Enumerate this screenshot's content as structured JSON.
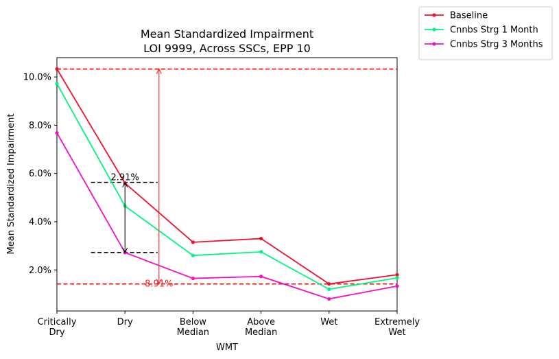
{
  "chart_data": {
    "type": "line",
    "title": "Mean Standardized Impairment",
    "subtitle": "LOI 9999, Across SSCs, EPP 10",
    "xlabel": "WMT",
    "ylabel": "Mean Standardized Impairment",
    "categories": [
      [
        "Critically",
        "Dry"
      ],
      [
        "Dry"
      ],
      [
        "Below",
        "Median"
      ],
      [
        "Above",
        "Median"
      ],
      [
        "Wet"
      ],
      [
        "Extremely",
        "Wet"
      ]
    ],
    "ylim": [
      0.3,
      10.8
    ],
    "yticks": [
      2.0,
      4.0,
      6.0,
      8.0,
      10.0
    ],
    "ytick_labels": [
      "2.0%",
      "4.0%",
      "6.0%",
      "8.0%",
      "10.0%"
    ],
    "y_unit": "%",
    "grid": false,
    "legend_position": "outside-top-right",
    "series": [
      {
        "name": "Baseline",
        "color": "#f0102e",
        "values": [
          10.33,
          5.6,
          3.15,
          3.3,
          1.42,
          1.8
        ]
      },
      {
        "name": "Cnnbs Strg 1 Month",
        "color": "#00f57f",
        "values": [
          9.72,
          4.65,
          2.6,
          2.75,
          1.2,
          1.67
        ]
      },
      {
        "name": "Cnnbs Strg 3 Months",
        "color": "#f20ccc",
        "values": [
          7.68,
          2.72,
          1.65,
          1.73,
          0.8,
          1.33
        ]
      }
    ],
    "annotations": {
      "hlines": [
        {
          "y": 10.33,
          "color": "#ff0000"
        },
        {
          "y": 1.42,
          "color": "#ff0000"
        }
      ],
      "hsegments": [
        {
          "y": 5.63,
          "x_from": 0.5,
          "x_to": 1.48,
          "color": "#000000"
        },
        {
          "y": 2.72,
          "x_from": 0.5,
          "x_to": 1.48,
          "color": "#000000"
        }
      ],
      "arrows": [
        {
          "x": 1.0,
          "y_from": 2.72,
          "y_to": 5.63,
          "color": "#000000",
          "both_heads": true,
          "label": "2.91%",
          "label_color": "#000000"
        },
        {
          "x": 1.5,
          "y_from": 1.42,
          "y_to": 10.33,
          "color": "#ff2020",
          "both_heads": true,
          "label": "8.91%",
          "label_color": "#ff2020"
        }
      ]
    }
  }
}
